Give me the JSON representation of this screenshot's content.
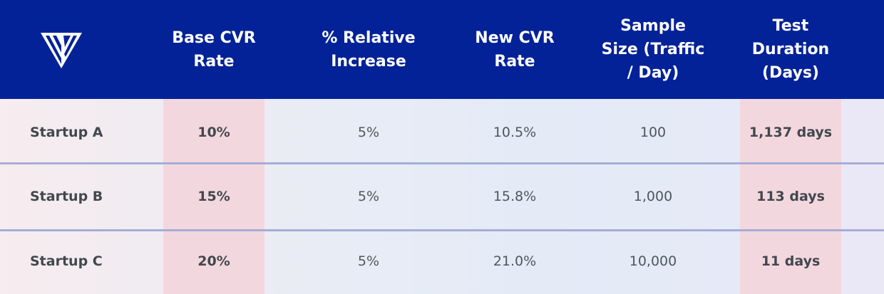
{
  "table": {
    "headers": {
      "base_cvr": "Base CVR\nRate",
      "relative_increase": "% Relative\nIncrease",
      "new_cvr": "New CVR\nRate",
      "sample_size": "Sample\nSize (Traffic\n/ Day)",
      "test_duration": "Test\nDuration\n(Days)"
    },
    "rows": [
      {
        "label": "Startup A",
        "base_cvr": "10%",
        "relative_increase": "5%",
        "new_cvr": "10.5%",
        "sample_size": "100",
        "test_duration": "1,137 days"
      },
      {
        "label": "Startup B",
        "base_cvr": "15%",
        "relative_increase": "5%",
        "new_cvr": "15.8%",
        "sample_size": "1,000",
        "test_duration": "113 days"
      },
      {
        "label": "Startup C",
        "base_cvr": "20%",
        "relative_increase": "5%",
        "new_cvr": "21.0%",
        "sample_size": "10,000",
        "test_duration": "11 days"
      }
    ]
  },
  "logo": {
    "icon": "brand-logo-icon"
  },
  "colors": {
    "header_bg": "#032298",
    "header_text": "#ffffff",
    "highlight_column": "#f3d7df",
    "divider": "#a5aed6",
    "body_text": "#4f575d"
  }
}
